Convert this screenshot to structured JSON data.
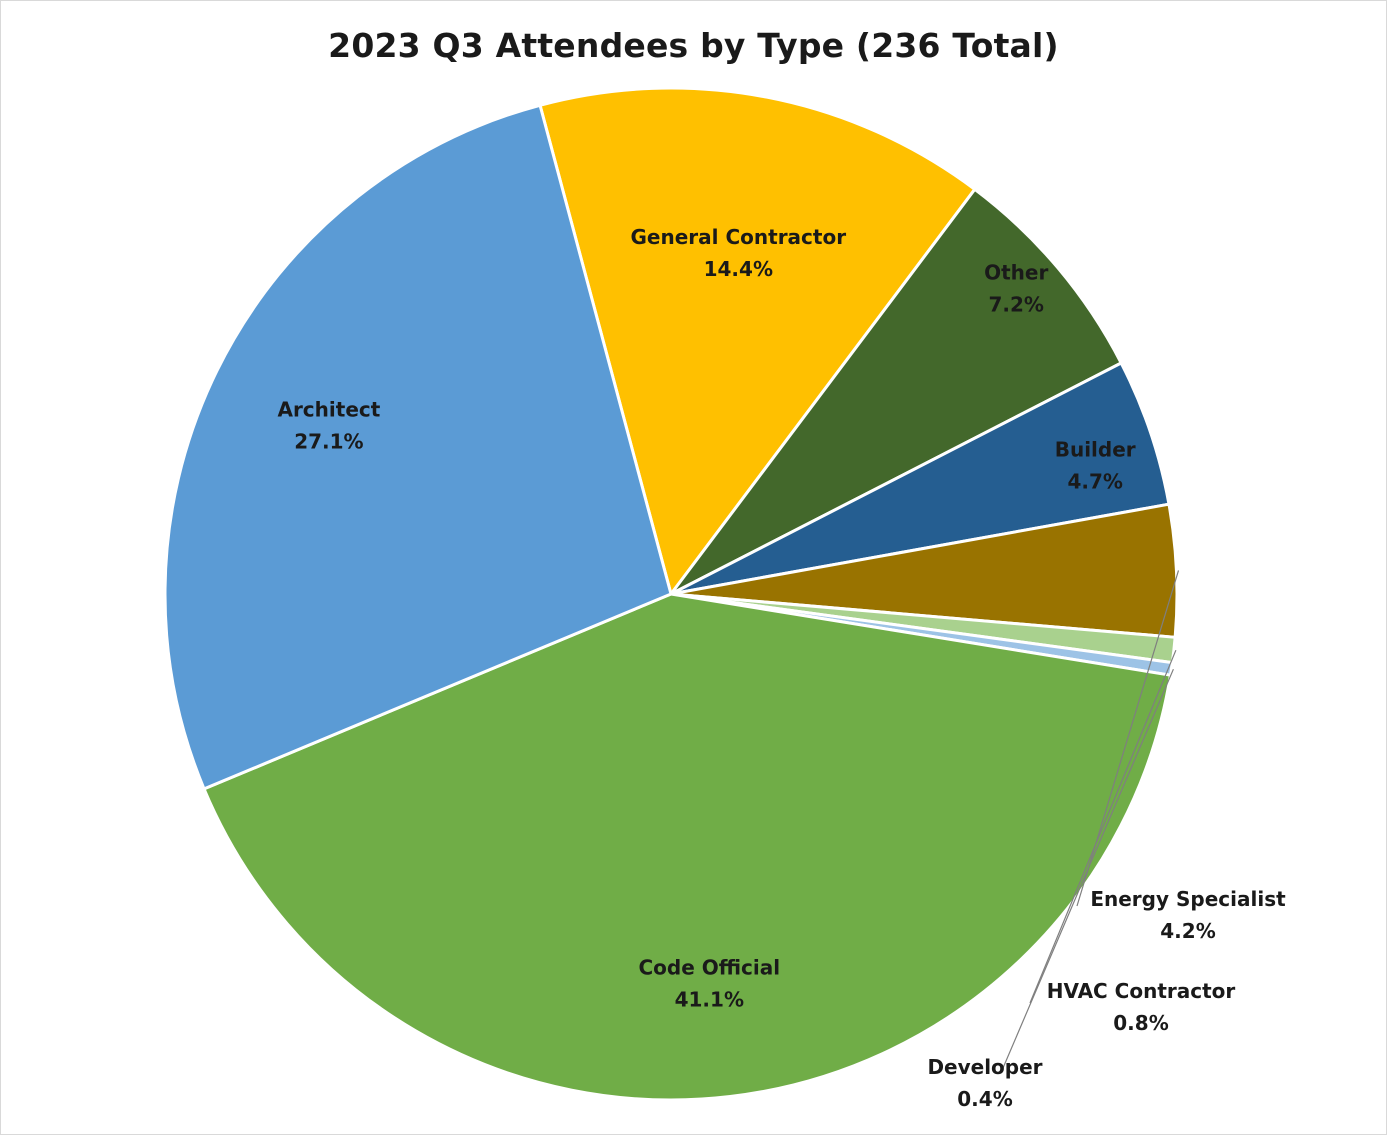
{
  "chart_data": {
    "type": "pie",
    "title": "2023 Q3 Attendees by Type (236 Total)",
    "unit": "%",
    "slices": [
      {
        "name": "General Contractor",
        "value": 14.4,
        "label": "14.4%",
        "color": "#FFC000"
      },
      {
        "name": "Other",
        "value": 7.2,
        "label": "7.2%",
        "color": "#43682B"
      },
      {
        "name": "Builder",
        "value": 4.7,
        "label": "4.7%",
        "color": "#255E91"
      },
      {
        "name": "Energy Specialist",
        "value": 4.2,
        "label": "4.2%",
        "color": "#997300"
      },
      {
        "name": "HVAC Contractor",
        "value": 0.8,
        "label": "0.8%",
        "color": "#A9D18E"
      },
      {
        "name": "Developer",
        "value": 0.4,
        "label": "0.4%",
        "color": "#9DC3E6"
      },
      {
        "name": "Code Official",
        "value": 41.1,
        "label": "41.1%",
        "color": "#70AD47"
      },
      {
        "name": "Architect",
        "value": 27.1,
        "label": "27.1%",
        "color": "#5B9BD5"
      }
    ],
    "legend": "none",
    "data_labels": "category name and percentage"
  }
}
